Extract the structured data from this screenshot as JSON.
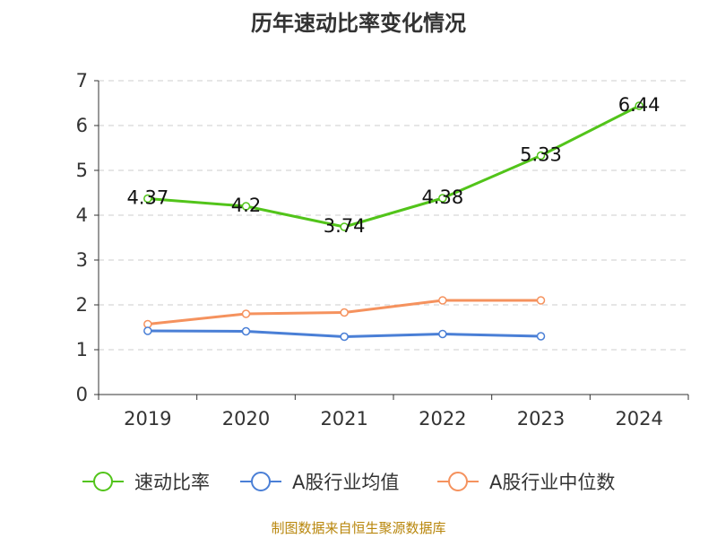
{
  "chart_data": {
    "type": "line",
    "title": "历年速动比率变化情况",
    "categories": [
      "2019",
      "2020",
      "2021",
      "2022",
      "2023",
      "2024"
    ],
    "ylim": [
      0,
      7
    ],
    "yticks": [
      "0",
      "1",
      "2",
      "3",
      "4",
      "5",
      "6",
      "7"
    ],
    "grid": true,
    "legend_position": "bottom",
    "series": [
      {
        "name": "速动比率",
        "color": "#52c41a",
        "values": [
          4.37,
          4.2,
          3.74,
          4.38,
          5.33,
          6.44
        ],
        "labels": [
          "4.37",
          "4.2",
          "3.74",
          "4.38",
          "5.33",
          "6.44"
        ]
      },
      {
        "name": "A股行业均值",
        "color": "#4a7fd6",
        "values": [
          1.42,
          1.41,
          1.29,
          1.35,
          1.3,
          null
        ]
      },
      {
        "name": "A股行业中位数",
        "color": "#f5925e",
        "values": [
          1.57,
          1.8,
          1.83,
          2.1,
          2.1,
          null
        ]
      }
    ]
  },
  "footer": {
    "source": "制图数据来自恒生聚源数据库"
  }
}
